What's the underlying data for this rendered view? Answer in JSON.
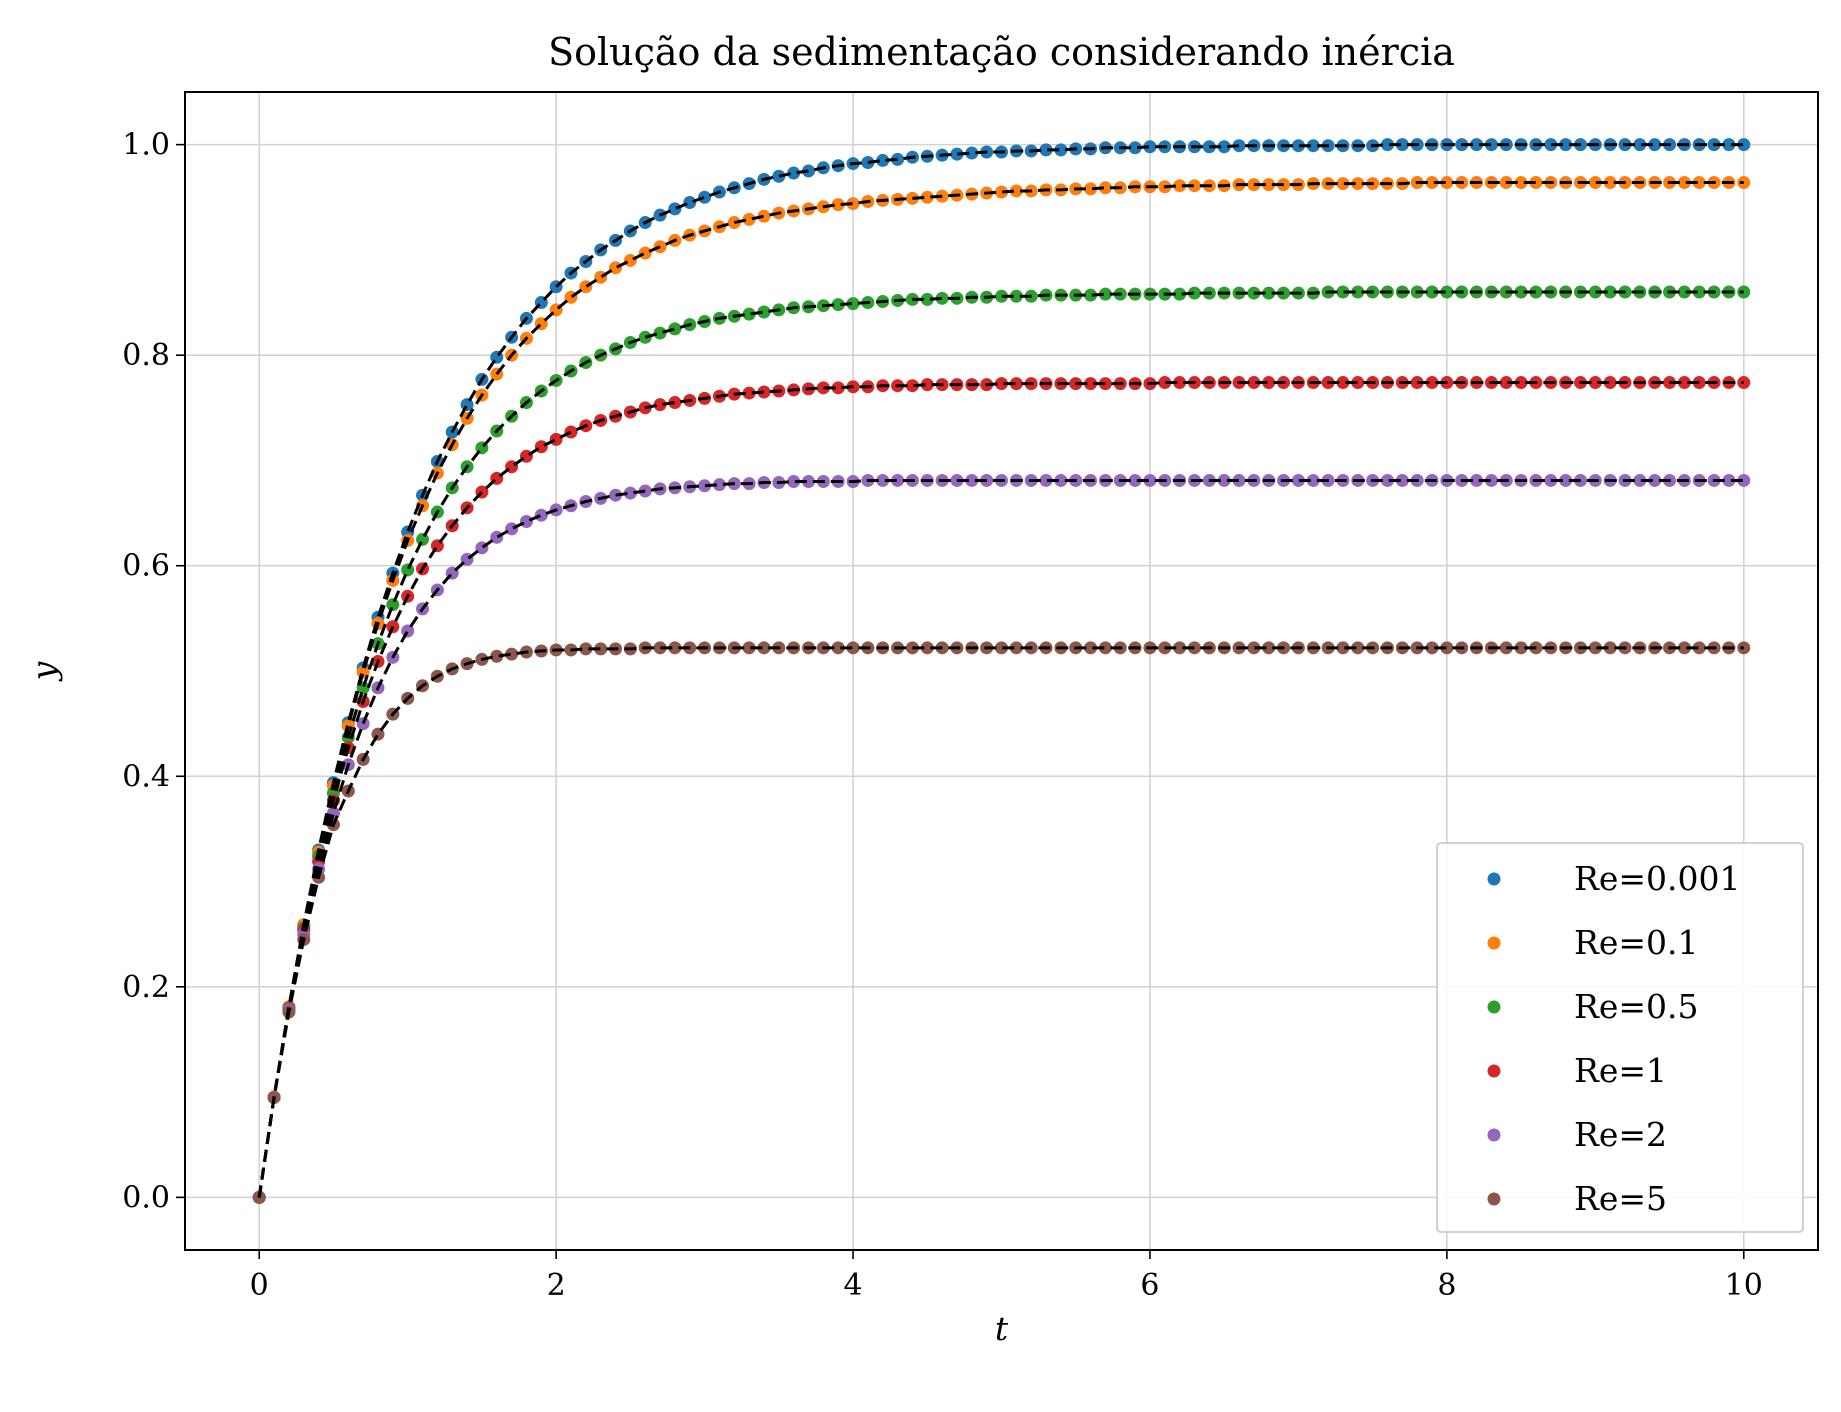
{
  "chart_data": {
    "type": "scatter",
    "title": "Solução da sedimentação considerando inércia",
    "xlabel": "t",
    "ylabel": "y",
    "xlim": [
      -0.5,
      10.5
    ],
    "ylim": [
      -0.05,
      1.05
    ],
    "xticks": [
      0,
      2,
      4,
      6,
      8,
      10
    ],
    "xtick_labels": [
      "0",
      "2",
      "4",
      "6",
      "8",
      "10"
    ],
    "yticks": [
      0.0,
      0.2,
      0.4,
      0.6,
      0.8,
      1.0
    ],
    "ytick_labels": [
      "0.0",
      "0.2",
      "0.4",
      "0.6",
      "0.8",
      "1.0"
    ],
    "grid": true,
    "legend_position": "lower right",
    "markers_per_series": 101,
    "x": [
      0,
      0.1,
      0.2,
      0.3,
      0.4,
      0.5,
      0.6,
      0.7,
      0.8,
      0.9,
      1.0,
      1.1,
      1.2,
      1.3,
      1.4,
      1.5,
      1.6,
      1.7,
      1.8,
      1.9,
      2.0,
      2.1,
      2.2,
      2.3,
      2.4,
      2.5,
      2.6,
      2.7,
      2.8,
      2.9,
      3.0,
      3.1,
      3.2,
      3.3,
      3.4,
      3.5,
      3.6,
      3.7,
      3.8,
      3.9,
      4.0,
      4.1,
      4.2,
      4.3,
      4.4,
      4.5,
      4.6,
      4.7,
      4.8,
      4.9,
      5.0,
      5.1,
      5.2,
      5.3,
      5.4,
      5.5,
      5.6,
      5.7,
      5.8,
      5.9,
      6.0,
      6.1,
      6.2,
      6.3,
      6.4,
      6.5,
      6.6,
      6.7,
      6.8,
      6.9,
      7.0,
      7.1,
      7.2,
      7.3,
      7.4,
      7.5,
      7.6,
      7.7,
      7.8,
      7.9,
      8.0,
      8.1,
      8.2,
      8.3,
      8.4,
      8.5,
      8.6,
      8.7,
      8.8,
      8.9,
      9.0,
      9.1,
      9.2,
      9.3,
      9.4,
      9.5,
      9.6,
      9.7,
      9.8,
      9.9,
      10.0
    ],
    "series": [
      {
        "name": "Re=0.001",
        "color": "#1f77b4",
        "y": [
          0,
          0.095,
          0.181,
          0.259,
          0.33,
          0.394,
          0.451,
          0.503,
          0.551,
          0.593,
          0.632,
          0.667,
          0.699,
          0.727,
          0.753,
          0.777,
          0.798,
          0.817,
          0.835,
          0.85,
          0.865,
          0.878,
          0.889,
          0.9,
          0.909,
          0.918,
          0.926,
          0.933,
          0.939,
          0.945,
          0.95,
          0.955,
          0.959,
          0.963,
          0.967,
          0.97,
          0.973,
          0.975,
          0.978,
          0.98,
          0.982,
          0.983,
          0.985,
          0.986,
          0.988,
          0.989,
          0.99,
          0.991,
          0.992,
          0.993,
          0.993,
          0.994,
          0.994,
          0.995,
          0.995,
          0.996,
          0.996,
          0.997,
          0.997,
          0.997,
          0.998,
          0.998,
          0.998,
          0.998,
          0.998,
          0.998,
          0.999,
          0.999,
          0.999,
          0.999,
          0.999,
          0.999,
          0.999,
          0.999,
          0.999,
          0.999,
          1.0,
          1.0,
          1.0,
          1.0,
          1.0,
          1.0,
          1.0,
          1.0,
          1.0,
          1.0,
          1.0,
          1.0,
          1.0,
          1.0,
          1.0,
          1.0,
          1.0,
          1.0,
          1.0,
          1.0,
          1.0,
          1.0,
          1.0,
          1.0,
          1.0
        ]
      },
      {
        "name": "Re=0.1",
        "color": "#ff7f0e",
        "y": [
          0,
          0.095,
          0.181,
          0.259,
          0.328,
          0.391,
          0.448,
          0.499,
          0.545,
          0.586,
          0.624,
          0.657,
          0.688,
          0.715,
          0.74,
          0.762,
          0.782,
          0.8,
          0.816,
          0.83,
          0.843,
          0.855,
          0.865,
          0.874,
          0.883,
          0.89,
          0.897,
          0.903,
          0.909,
          0.914,
          0.918,
          0.922,
          0.926,
          0.929,
          0.932,
          0.935,
          0.937,
          0.939,
          0.941,
          0.943,
          0.944,
          0.946,
          0.947,
          0.948,
          0.949,
          0.95,
          0.951,
          0.952,
          0.953,
          0.954,
          0.955,
          0.956,
          0.956,
          0.957,
          0.957,
          0.958,
          0.958,
          0.959,
          0.959,
          0.96,
          0.96,
          0.96,
          0.961,
          0.961,
          0.961,
          0.961,
          0.962,
          0.962,
          0.962,
          0.962,
          0.962,
          0.963,
          0.963,
          0.963,
          0.963,
          0.963,
          0.963,
          0.963,
          0.964,
          0.964,
          0.964,
          0.964,
          0.964,
          0.964,
          0.964,
          0.964,
          0.964,
          0.964,
          0.964,
          0.964,
          0.964,
          0.964,
          0.964,
          0.964,
          0.964,
          0.964,
          0.964,
          0.964,
          0.964,
          0.964,
          0.964
        ]
      },
      {
        "name": "Re=0.5",
        "color": "#2ca02c",
        "y": [
          0,
          0.095,
          0.18,
          0.256,
          0.324,
          0.384,
          0.437,
          0.484,
          0.526,
          0.563,
          0.596,
          0.625,
          0.651,
          0.674,
          0.694,
          0.712,
          0.728,
          0.742,
          0.755,
          0.766,
          0.776,
          0.785,
          0.793,
          0.8,
          0.806,
          0.812,
          0.817,
          0.821,
          0.825,
          0.829,
          0.832,
          0.835,
          0.837,
          0.839,
          0.841,
          0.843,
          0.845,
          0.846,
          0.847,
          0.848,
          0.849,
          0.85,
          0.851,
          0.852,
          0.853,
          0.853,
          0.854,
          0.854,
          0.855,
          0.855,
          0.856,
          0.856,
          0.856,
          0.857,
          0.857,
          0.857,
          0.857,
          0.858,
          0.858,
          0.858,
          0.858,
          0.858,
          0.858,
          0.859,
          0.859,
          0.859,
          0.859,
          0.859,
          0.859,
          0.859,
          0.859,
          0.859,
          0.86,
          0.86,
          0.86,
          0.86,
          0.86,
          0.86,
          0.86,
          0.86,
          0.86,
          0.86,
          0.86,
          0.86,
          0.86,
          0.86,
          0.86,
          0.86,
          0.86,
          0.86,
          0.86,
          0.86,
          0.86,
          0.86,
          0.86,
          0.86,
          0.86,
          0.86,
          0.86,
          0.86,
          0.86
        ]
      },
      {
        "name": "Re=1",
        "color": "#d62728",
        "y": [
          0,
          0.095,
          0.179,
          0.254,
          0.319,
          0.377,
          0.427,
          0.471,
          0.509,
          0.542,
          0.571,
          0.597,
          0.619,
          0.638,
          0.655,
          0.67,
          0.683,
          0.694,
          0.704,
          0.713,
          0.72,
          0.727,
          0.733,
          0.738,
          0.742,
          0.746,
          0.75,
          0.753,
          0.755,
          0.757,
          0.759,
          0.761,
          0.763,
          0.764,
          0.765,
          0.766,
          0.767,
          0.768,
          0.769,
          0.769,
          0.77,
          0.77,
          0.771,
          0.771,
          0.771,
          0.772,
          0.772,
          0.772,
          0.772,
          0.772,
          0.773,
          0.773,
          0.773,
          0.773,
          0.773,
          0.773,
          0.773,
          0.773,
          0.773,
          0.773,
          0.773,
          0.774,
          0.774,
          0.774,
          0.774,
          0.774,
          0.774,
          0.774,
          0.774,
          0.774,
          0.774,
          0.774,
          0.774,
          0.774,
          0.774,
          0.774,
          0.774,
          0.774,
          0.774,
          0.774,
          0.774,
          0.774,
          0.774,
          0.774,
          0.774,
          0.774,
          0.774,
          0.774,
          0.774,
          0.774,
          0.774,
          0.774,
          0.774,
          0.774,
          0.774,
          0.774,
          0.774,
          0.774,
          0.774,
          0.774,
          0.774
        ]
      },
      {
        "name": "Re=2",
        "color": "#9467bd",
        "y": [
          0,
          0.095,
          0.178,
          0.25,
          0.312,
          0.365,
          0.411,
          0.45,
          0.484,
          0.513,
          0.538,
          0.559,
          0.577,
          0.593,
          0.606,
          0.617,
          0.627,
          0.635,
          0.642,
          0.648,
          0.653,
          0.657,
          0.661,
          0.664,
          0.667,
          0.669,
          0.671,
          0.673,
          0.674,
          0.675,
          0.676,
          0.677,
          0.678,
          0.678,
          0.679,
          0.679,
          0.68,
          0.68,
          0.68,
          0.68,
          0.68,
          0.681,
          0.681,
          0.681,
          0.681,
          0.681,
          0.681,
          0.681,
          0.681,
          0.681,
          0.681,
          0.681,
          0.681,
          0.681,
          0.681,
          0.681,
          0.681,
          0.681,
          0.681,
          0.681,
          0.681,
          0.681,
          0.681,
          0.681,
          0.681,
          0.681,
          0.681,
          0.681,
          0.681,
          0.681,
          0.681,
          0.681,
          0.681,
          0.681,
          0.681,
          0.681,
          0.681,
          0.681,
          0.681,
          0.681,
          0.681,
          0.681,
          0.681,
          0.681,
          0.681,
          0.681,
          0.681,
          0.681,
          0.681,
          0.681,
          0.681,
          0.681,
          0.681,
          0.681,
          0.681,
          0.681,
          0.681,
          0.681,
          0.681,
          0.681,
          0.681
        ]
      },
      {
        "name": "Re=5",
        "color": "#8c564b",
        "y": [
          0,
          0.095,
          0.176,
          0.245,
          0.304,
          0.354,
          0.386,
          0.416,
          0.44,
          0.459,
          0.474,
          0.486,
          0.495,
          0.502,
          0.507,
          0.511,
          0.514,
          0.516,
          0.518,
          0.519,
          0.52,
          0.52,
          0.521,
          0.521,
          0.521,
          0.521,
          0.522,
          0.522,
          0.522,
          0.522,
          0.522,
          0.522,
          0.522,
          0.522,
          0.522,
          0.522,
          0.522,
          0.522,
          0.522,
          0.522,
          0.522,
          0.522,
          0.522,
          0.522,
          0.522,
          0.522,
          0.522,
          0.522,
          0.522,
          0.522,
          0.522,
          0.522,
          0.522,
          0.522,
          0.522,
          0.522,
          0.522,
          0.522,
          0.522,
          0.522,
          0.522,
          0.522,
          0.522,
          0.522,
          0.522,
          0.522,
          0.522,
          0.522,
          0.522,
          0.522,
          0.522,
          0.522,
          0.522,
          0.522,
          0.522,
          0.522,
          0.522,
          0.522,
          0.522,
          0.522,
          0.522,
          0.522,
          0.522,
          0.522,
          0.522,
          0.522,
          0.522,
          0.522,
          0.522,
          0.522,
          0.522,
          0.522,
          0.522,
          0.522,
          0.522,
          0.522,
          0.522,
          0.522,
          0.522,
          0.522,
          0.522
        ]
      }
    ],
    "reference_lines": {
      "color": "#000000",
      "style": "dashed",
      "note_series": "black dashed analytical curves overlaid on each series"
    }
  }
}
